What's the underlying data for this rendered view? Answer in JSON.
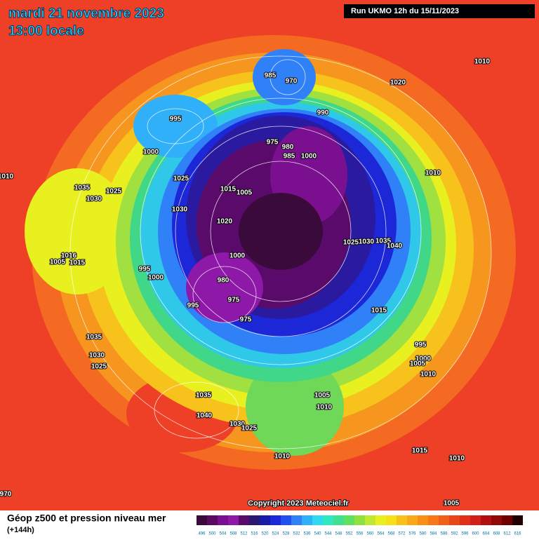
{
  "header": {
    "date": "mardi 21 novembre 2023",
    "time": "13:00 locale",
    "run": "Run UKMO 12h du 15/11/2023"
  },
  "map": {
    "copyright": "Copyright 2023 Meteociel.fr",
    "isobar_labels": [
      "985",
      "970",
      "990",
      "1020",
      "1010",
      "995",
      "1000",
      "1025",
      "975",
      "980",
      "985",
      "1000",
      "1010",
      "1035",
      "1030",
      "1025",
      "1015",
      "1030",
      "1020",
      "1005",
      "1025",
      "1030",
      "1035",
      "1040",
      "1000",
      "995",
      "1000",
      "980",
      "975",
      "975",
      "995",
      "1016",
      "1005",
      "1015",
      "1015",
      "1035",
      "1030",
      "1025",
      "995",
      "1000",
      "1005",
      "1010",
      "1005",
      "1010",
      "1035",
      "1040",
      "1030",
      "1025",
      "1010",
      "1015",
      "1010",
      "1005",
      "1010",
      "970"
    ]
  },
  "legend": {
    "title": "Géop z500 et pression niveau mer",
    "subtitle": "(+144h)",
    "levels": [
      496,
      500,
      504,
      508,
      512,
      516,
      520,
      524,
      528,
      532,
      536,
      540,
      544,
      548,
      552,
      556,
      560,
      564,
      568,
      572,
      576,
      580,
      584,
      588,
      592,
      596,
      600,
      604,
      608,
      612,
      616
    ],
    "colors": [
      "#3a0a3a",
      "#5a0a60",
      "#7a1090",
      "#8e18a8",
      "#5a0a6a",
      "#2a1870",
      "#1a1aa8",
      "#1c28d8",
      "#2050f0",
      "#3080f8",
      "#30b0f8",
      "#30d8f0",
      "#30e8c0",
      "#40e090",
      "#60e060",
      "#90e040",
      "#c0e830",
      "#e8f020",
      "#f8e018",
      "#f8c018",
      "#f8a818",
      "#f89018",
      "#f87818",
      "#f06018",
      "#e84818",
      "#e03018",
      "#d02018",
      "#b01010",
      "#900808",
      "#700000",
      "#200000"
    ]
  }
}
